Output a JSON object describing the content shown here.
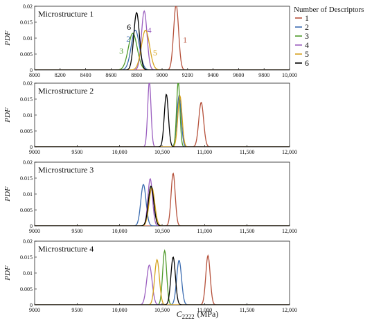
{
  "figure": {
    "legend_title": "Number of Descriptors",
    "xlabel_symbol": "C",
    "xlabel_subscript": "2222",
    "xlabel_units": "(MPa)",
    "ylabel": "PDF"
  },
  "colors": {
    "1": "#b5503a",
    "2": "#3a6bb0",
    "3": "#4e9a2a",
    "4": "#9b5fc0",
    "5": "#d6a21e",
    "6": "#000000"
  },
  "legend": [
    {
      "key": "1",
      "label": "1"
    },
    {
      "key": "2",
      "label": "2"
    },
    {
      "key": "3",
      "label": "3"
    },
    {
      "key": "4",
      "label": "4"
    },
    {
      "key": "5",
      "label": "5"
    },
    {
      "key": "6",
      "label": "6"
    }
  ],
  "chart_data": [
    {
      "type": "line",
      "title": "Microstructure 1",
      "ylabel": "PDF",
      "xlabel": "C2222 (MPa)",
      "xlim": [
        8000,
        10000
      ],
      "ylim": [
        0,
        0.02
      ],
      "xticks": [
        8000,
        8200,
        8400,
        8600,
        8800,
        9000,
        9200,
        9400,
        9600,
        9800,
        10000
      ],
      "xtick_labels": [
        "8000",
        "8200",
        "8400",
        "8600",
        "8800",
        "9000",
        "9200",
        "9400",
        "9600",
        "9800",
        "10,000"
      ],
      "yticks": [
        0,
        0.005,
        0.01,
        0.015,
        0.02
      ],
      "ytick_labels": [
        "0",
        "0.005",
        "0.01",
        "0.015",
        "0.02"
      ],
      "series": [
        {
          "name": "1",
          "mean": 9110,
          "peak": 0.0205
        },
        {
          "name": "2",
          "mean": 8790,
          "peak": 0.0125
        },
        {
          "name": "3",
          "mean": 8770,
          "peak": 0.0115
        },
        {
          "name": "4",
          "mean": 8860,
          "peak": 0.0185
        },
        {
          "name": "5",
          "mean": 8870,
          "peak": 0.0125
        },
        {
          "name": "6",
          "mean": 8800,
          "peak": 0.018
        }
      ],
      "annotations": [
        {
          "text": "1",
          "key": "1",
          "x": 9180,
          "y": 0.0095
        },
        {
          "text": "2",
          "key": "2",
          "x": 8735,
          "y": 0.0098
        },
        {
          "text": "3",
          "key": "3",
          "x": 8680,
          "y": 0.006
        },
        {
          "text": "4",
          "key": "4",
          "x": 8900,
          "y": 0.0125
        },
        {
          "text": "5",
          "key": "5",
          "x": 8945,
          "y": 0.0054
        },
        {
          "text": "6",
          "key": "6",
          "x": 8740,
          "y": 0.0135
        }
      ]
    },
    {
      "type": "line",
      "title": "Microstructure 2",
      "ylabel": "PDF",
      "xlabel": "C2222 (MPa)",
      "xlim": [
        9000,
        12000
      ],
      "ylim": [
        0,
        0.02
      ],
      "xticks": [
        9000,
        9500,
        10000,
        10500,
        11000,
        11500,
        12000
      ],
      "xtick_labels": [
        "9000",
        "9500",
        "10,000",
        "10,500",
        "11,000",
        "11,500",
        "12,000"
      ],
      "yticks": [
        0,
        0.005,
        0.01,
        0.015,
        0.02
      ],
      "ytick_labels": [
        "0",
        "0.005",
        "0.01",
        "0.015",
        "0.02"
      ],
      "series": [
        {
          "name": "1",
          "mean": 10960,
          "peak": 0.014
        },
        {
          "name": "2",
          "mean": 10700,
          "peak": 0.016
        },
        {
          "name": "3",
          "mean": 10690,
          "peak": 0.0205
        },
        {
          "name": "4",
          "mean": 10350,
          "peak": 0.0205
        },
        {
          "name": "5",
          "mean": 10710,
          "peak": 0.016
        },
        {
          "name": "6",
          "mean": 10550,
          "peak": 0.0165
        }
      ],
      "annotations": []
    },
    {
      "type": "line",
      "title": "Microstructure 3",
      "ylabel": "PDF",
      "xlabel": "C2222 (MPa)",
      "xlim": [
        9000,
        12000
      ],
      "ylim": [
        0,
        0.02
      ],
      "xticks": [
        9000,
        9500,
        10000,
        10500,
        11000,
        11500,
        12000
      ],
      "xtick_labels": [
        "9000",
        "9500",
        "10,000",
        "10,500",
        "11,000",
        "11,500",
        "12,000"
      ],
      "yticks": [
        0,
        0.005,
        0.01,
        0.015,
        0.02
      ],
      "ytick_labels": [
        "0",
        "0.005",
        "0.01",
        "0.015",
        "0.02"
      ],
      "series": [
        {
          "name": "1",
          "mean": 10630,
          "peak": 0.0165
        },
        {
          "name": "2",
          "mean": 10280,
          "peak": 0.013
        },
        {
          "name": "3",
          "mean": 10370,
          "peak": 0.0125
        },
        {
          "name": "4",
          "mean": 10360,
          "peak": 0.0148
        },
        {
          "name": "5",
          "mean": 10380,
          "peak": 0.012
        },
        {
          "name": "6",
          "mean": 10370,
          "peak": 0.0125
        }
      ],
      "annotations": []
    },
    {
      "type": "line",
      "title": "Microstructure 4",
      "ylabel": "PDF",
      "xlabel": "C2222 (MPa)",
      "xlim": [
        9000,
        12000
      ],
      "ylim": [
        0,
        0.02
      ],
      "xticks": [
        9000,
        9500,
        10000,
        10500,
        11000,
        11500,
        12000
      ],
      "xtick_labels": [
        "9000",
        "9500",
        "10,000",
        "10,500",
        "11,000",
        "11,500",
        "12,000"
      ],
      "yticks": [
        0,
        0.005,
        0.01,
        0.015,
        0.02
      ],
      "ytick_labels": [
        "0",
        "0.005",
        "0.01",
        "0.015",
        "0.02"
      ],
      "series": [
        {
          "name": "1",
          "mean": 11040,
          "peak": 0.0155
        },
        {
          "name": "2",
          "mean": 10700,
          "peak": 0.014
        },
        {
          "name": "3",
          "mean": 10530,
          "peak": 0.017
        },
        {
          "name": "4",
          "mean": 10350,
          "peak": 0.0125
        },
        {
          "name": "5",
          "mean": 10440,
          "peak": 0.0142
        },
        {
          "name": "6",
          "mean": 10630,
          "peak": 0.015
        }
      ],
      "annotations": []
    }
  ]
}
